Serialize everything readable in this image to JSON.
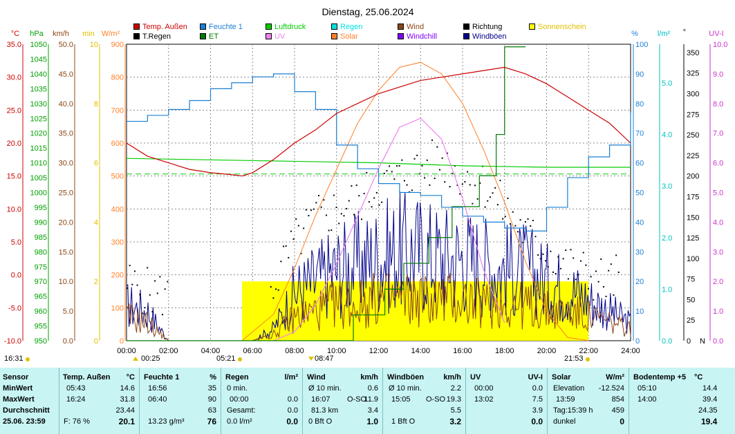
{
  "title": "Dienstag, 25.06.2024",
  "legend": [
    {
      "label": "Temp. Außen",
      "color": "#cc0000"
    },
    {
      "label": "Feuchte 1",
      "color": "#1a7fd4"
    },
    {
      "label": "Luftdruck",
      "color": "#00cc00"
    },
    {
      "label": "Regen",
      "color": "#00e0e0"
    },
    {
      "label": "Wind",
      "color": "#8b4513"
    },
    {
      "label": "Richtung",
      "color": "#000000"
    },
    {
      "label": "Sonnenschein",
      "color": "#ffff00"
    },
    {
      "label": "T.Regen",
      "color": "#000000"
    },
    {
      "label": "ET",
      "color": "#007a00"
    },
    {
      "label": "UV",
      "color": "#ee82ee"
    },
    {
      "label": "Solar",
      "color": "#ff7f27"
    },
    {
      "label": "Windchill",
      "color": "#8000ff"
    },
    {
      "label": "Windböen",
      "color": "#00008b"
    }
  ],
  "axes_units": {
    "temp": "°C",
    "hpa": "hPa",
    "kmh": "km/h",
    "min": "min",
    "wm2": "W/m²",
    "percent": "%",
    "lm2": "l/m²",
    "deg": "°",
    "uvi": "UV-I"
  },
  "axis_ticks": {
    "temp": [
      "35.0",
      "30.0",
      "25.0",
      "20.0",
      "15.0",
      "10.0",
      "5.0",
      "0.0",
      "-5.0",
      "-10.0"
    ],
    "hpa": [
      "1050",
      "1045",
      "1040",
      "1035",
      "1030",
      "1025",
      "1020",
      "1015",
      "1010",
      "1005",
      "1000",
      "995",
      "990",
      "985",
      "980",
      "975",
      "970",
      "965",
      "960",
      "955",
      "950"
    ],
    "kmh": [
      "50.0",
      "45.0",
      "40.0",
      "35.0",
      "30.0",
      "25.0",
      "20.0",
      "15.0",
      "10.0",
      "5.0",
      "0.0"
    ],
    "min": [
      "10",
      "8",
      "6",
      "4",
      "2",
      "0"
    ],
    "wm2": [
      "900",
      "800",
      "700",
      "600",
      "500",
      "400",
      "300",
      "200",
      "100",
      "0"
    ],
    "percent": [
      "100",
      "90",
      "80",
      "70",
      "60",
      "50",
      "40",
      "30",
      "20",
      "10",
      "0"
    ],
    "lm2": [
      "5.0",
      "4.0",
      "3.0",
      "2.0",
      "1.0",
      "0.0"
    ],
    "deg": [
      "350",
      "325",
      "300",
      "275",
      "250",
      "225",
      "200",
      "175",
      "150",
      "125",
      "100",
      "75",
      "50",
      "25",
      "0"
    ],
    "deg_bottom": "N",
    "uvi": [
      "10.0",
      "9.0",
      "8.0",
      "7.0",
      "6.0",
      "5.0",
      "4.0",
      "3.0",
      "2.0",
      "1.0",
      "0.0"
    ],
    "time": [
      "00:00",
      "02:00",
      "04:00",
      "06:00",
      "08:00",
      "10:00",
      "12:00",
      "14:00",
      "16:00",
      "18:00",
      "20:00",
      "22:00",
      "24:00"
    ]
  },
  "time_markers": {
    "left": "16:31",
    "rise_moon": "00:25",
    "sunrise": "05:21",
    "noon": "08:47",
    "sunset": "21:53"
  },
  "chart_data": {
    "type": "line",
    "title": "Dienstag, 25.06.2024",
    "x_unit": "hour",
    "xlim": [
      0,
      24
    ],
    "series": [
      {
        "name": "Temp. Außen",
        "unit": "°C",
        "x": [
          0,
          1,
          2,
          3,
          4,
          5,
          5.5,
          6,
          7,
          8,
          9,
          10,
          11,
          12,
          13,
          14,
          15,
          16,
          17,
          18,
          19,
          20,
          21,
          22,
          23,
          24
        ],
        "values": [
          20.0,
          18.0,
          17.0,
          16.0,
          15.5,
          15.2,
          15.0,
          15.5,
          17.5,
          20.0,
          22.0,
          24.5,
          26.0,
          27.5,
          28.5,
          29.5,
          30.0,
          30.5,
          31.0,
          31.5,
          30.5,
          29.0,
          27.0,
          25.0,
          23.0,
          20.0
        ]
      },
      {
        "name": "Feuchte 1",
        "unit": "%",
        "x": [
          0,
          1,
          2,
          3,
          4,
          5,
          6,
          7,
          8,
          9,
          10,
          11,
          12,
          13,
          14,
          15,
          16,
          17,
          18,
          19,
          20,
          21,
          22,
          23,
          24
        ],
        "values": [
          74,
          76,
          78,
          81,
          85,
          87,
          89,
          90,
          84,
          78,
          66,
          58,
          53,
          50,
          49,
          45,
          42,
          40,
          38,
          37,
          45,
          55,
          62,
          66,
          77
        ]
      },
      {
        "name": "Luftdruck",
        "unit": "hPa",
        "x": [
          0,
          4,
          8,
          12,
          16,
          20,
          24
        ],
        "values": [
          1011.5,
          1011.0,
          1010.5,
          1010.0,
          1009.0,
          1008.5,
          1008.5
        ]
      },
      {
        "name": "Solar",
        "unit": "W/m²",
        "x": [
          5.5,
          7,
          8,
          9,
          10,
          11,
          12,
          13,
          14,
          15,
          16,
          17,
          18,
          19,
          20,
          21,
          22
        ],
        "values": [
          0,
          80,
          220,
          380,
          520,
          660,
          760,
          830,
          845,
          810,
          720,
          580,
          420,
          240,
          90,
          10,
          0
        ]
      },
      {
        "name": "UV",
        "unit": "UV-I",
        "x": [
          7,
          8,
          9,
          10,
          11,
          12,
          13,
          14,
          15,
          16,
          17,
          18
        ],
        "values": [
          0,
          0.3,
          1.2,
          2.6,
          4.2,
          5.8,
          7.2,
          7.5,
          6.8,
          4.8,
          2.4,
          0.6
        ]
      },
      {
        "name": "ET",
        "unit": "l/m²",
        "x": [
          0,
          10.8,
          12.3,
          13.2,
          14.4,
          15.5,
          16.8,
          17.6,
          18.0,
          19.0
        ],
        "values": [
          0,
          0.5,
          1.0,
          1.5,
          2.0,
          2.6,
          3.2,
          4.0,
          5.7,
          5.7
        ]
      },
      {
        "name": "Sonnenschein",
        "unit": "min",
        "x": [
          5.5,
          7,
          9,
          12,
          15,
          18,
          20,
          21.8,
          22
        ],
        "values": [
          2,
          2,
          2,
          2,
          2,
          2,
          2,
          2,
          0
        ]
      },
      {
        "name": "Wind",
        "unit": "km/h",
        "x": [
          0,
          1,
          2,
          4,
          6,
          7,
          8,
          9,
          10,
          11,
          12,
          13,
          14,
          15,
          16,
          17,
          18,
          19,
          20,
          21,
          22,
          23,
          24
        ],
        "values": [
          4,
          3,
          0,
          0,
          0,
          1,
          4,
          5,
          6,
          6,
          7,
          7,
          7,
          7,
          7,
          6,
          6,
          6,
          5,
          5,
          4,
          3,
          2
        ]
      },
      {
        "name": "Windböen",
        "unit": "km/h",
        "x": [
          0,
          1,
          2,
          4,
          6,
          7,
          8,
          9,
          10,
          11,
          12,
          13,
          14,
          15,
          16,
          17,
          18,
          19,
          20,
          21,
          22,
          23,
          24
        ],
        "values": [
          6,
          5,
          0,
          0,
          0,
          2,
          8,
          10,
          12,
          13,
          14,
          15,
          15,
          14,
          14,
          13,
          12,
          12,
          10,
          9,
          7,
          5,
          3
        ]
      },
      {
        "name": "Richtung",
        "unit": "°",
        "x": [
          0,
          1,
          2,
          7,
          8,
          9,
          10,
          11,
          12,
          13,
          14,
          15,
          16,
          17,
          18,
          19,
          20,
          21,
          22,
          23,
          24
        ],
        "values": [
          70,
          60,
          55,
          70,
          120,
          150,
          160,
          170,
          190,
          200,
          210,
          220,
          200,
          190,
          160,
          130,
          110,
          90,
          80,
          70,
          100
        ]
      }
    ]
  },
  "table": {
    "sensor": {
      "header": "Sensor",
      "rows": [
        "MinWert",
        "MaxWert",
        "Durchschnitt",
        "25.06. 23:59"
      ]
    },
    "temp": {
      "header": "Temp. Außen",
      "unit": "°C",
      "min_time": "05:43",
      "min": "14.6",
      "max_time": "16:24",
      "max": "31.8",
      "avg": "23.44",
      "now_label": "F: 76 %",
      "now": "20.1"
    },
    "hum": {
      "header": "Feuchte 1",
      "unit": "%",
      "min_time": "16:56",
      "min": "35",
      "max_time": "06:40",
      "max": "90",
      "avg": "63",
      "now_label": "13.23 g/m³",
      "now": "76"
    },
    "rain": {
      "header": "Regen",
      "unit": "l/m²",
      "r1": "0 min.",
      "r2": "00:00",
      "r2v": "0.0",
      "r3": "Gesamt:",
      "r3v": "0.0",
      "r4": "0.0 l/m²",
      "now": "0.0"
    },
    "wind": {
      "header": "Wind",
      "unit": "km/h",
      "r1": "Ø 10 min.",
      "r1v": "0.6",
      "r2": "16:07",
      "r2d": "O-SO",
      "r2v": "11.9",
      "r3": "81.3 km",
      "r3v": "3.4",
      "r4": "0 Bft O",
      "now": "1.0"
    },
    "gust": {
      "header": "Windböen",
      "unit": "km/h",
      "r1": "Ø 10 min.",
      "r1v": "2.2",
      "r2": "15:05",
      "r2d": "O-SO",
      "r2v": "19.3",
      "r3v": "5.5",
      "r4": "1 Bft O",
      "now": "3.2"
    },
    "uv": {
      "header": "UV",
      "unit": "UV-I",
      "r1": "00:00",
      "r1v": "0.0",
      "r2": "13:02",
      "r2v": "7.5",
      "r3v": "3.9",
      "now": "0.0"
    },
    "solar": {
      "header": "Solar",
      "unit": "W/m²",
      "r1": "Elevation",
      "r1v": "-12.524",
      "r2": "13:59",
      "r2v": "854",
      "r3": "Tag:15:39 h",
      "r3v": "459",
      "r4": "dunkel",
      "now": "0"
    },
    "soil": {
      "header": "Bodentemp +5",
      "unit": "°C",
      "r1": "05:10",
      "r1v": "14.4",
      "r2": "14:00",
      "r2v": "39.4",
      "r3v": "24.35",
      "now": "19.4"
    }
  }
}
